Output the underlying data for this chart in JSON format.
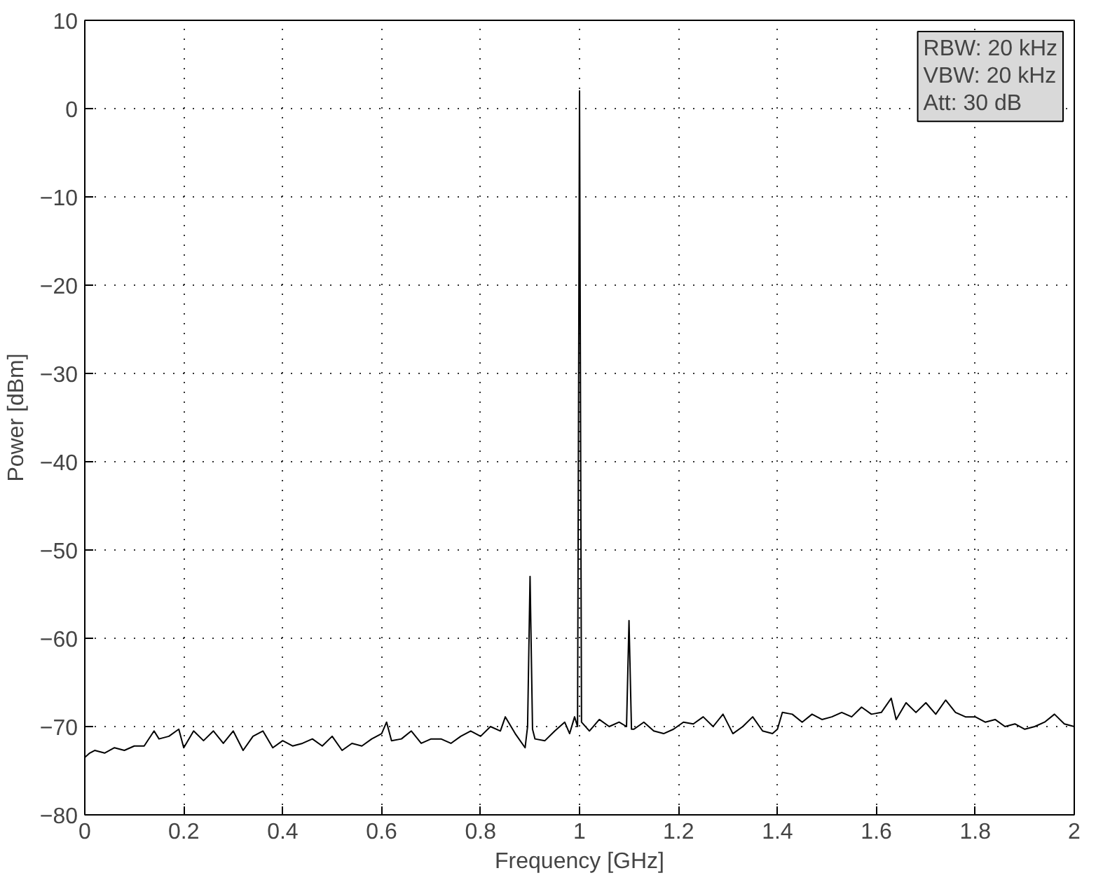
{
  "chart_data": {
    "type": "line",
    "xlabel": "Frequency [GHz]",
    "ylabel": "Power [dBm]",
    "annotations": [
      "RBW: 20 kHz",
      "VBW: 20 kHz",
      "Att: 30 dB"
    ],
    "xlim": [
      0,
      2
    ],
    "ylim": [
      -80,
      10
    ],
    "xticks": [
      0,
      0.2,
      0.4,
      0.6,
      0.8,
      1,
      1.2,
      1.4,
      1.6,
      1.8,
      2
    ],
    "yticks": [
      {
        "value": -80,
        "label": "−80"
      },
      {
        "value": -70,
        "label": "−70"
      },
      {
        "value": -60,
        "label": "−60"
      },
      {
        "value": -50,
        "label": "−50"
      },
      {
        "value": -40,
        "label": "−40"
      },
      {
        "value": -30,
        "label": "−30"
      },
      {
        "value": -20,
        "label": "−20"
      },
      {
        "value": -10,
        "label": "−10"
      },
      0,
      10
    ],
    "grid": true,
    "line_style": "solid",
    "marker": "none",
    "series": [
      {
        "color": "#000000",
        "x": [
          0,
          0.01,
          0.02,
          0.04,
          0.06,
          0.08,
          0.1,
          0.12,
          0.14,
          0.15,
          0.17,
          0.19,
          0.2,
          0.22,
          0.24,
          0.26,
          0.28,
          0.3,
          0.32,
          0.34,
          0.36,
          0.38,
          0.4,
          0.42,
          0.44,
          0.46,
          0.48,
          0.5,
          0.52,
          0.54,
          0.56,
          0.58,
          0.6,
          0.61,
          0.62,
          0.64,
          0.66,
          0.68,
          0.7,
          0.72,
          0.74,
          0.76,
          0.78,
          0.8,
          0.82,
          0.84,
          0.85,
          0.87,
          0.89,
          0.895,
          0.9,
          0.905,
          0.91,
          0.93,
          0.95,
          0.97,
          0.98,
          0.99,
          0.996,
          1,
          1.004,
          1.02,
          1.04,
          1.06,
          1.08,
          1.095,
          1.1,
          1.105,
          1.11,
          1.13,
          1.15,
          1.17,
          1.19,
          1.21,
          1.23,
          1.25,
          1.27,
          1.29,
          1.31,
          1.33,
          1.35,
          1.37,
          1.39,
          1.4,
          1.41,
          1.43,
          1.45,
          1.47,
          1.49,
          1.51,
          1.53,
          1.55,
          1.57,
          1.59,
          1.61,
          1.63,
          1.64,
          1.66,
          1.68,
          1.7,
          1.72,
          1.74,
          1.76,
          1.78,
          1.8,
          1.82,
          1.84,
          1.86,
          1.88,
          1.9,
          1.92,
          1.94,
          1.96,
          1.98,
          2
        ],
        "values": [
          -73.5,
          -73,
          -72.7,
          -73,
          -72.4,
          -72.7,
          -72.2,
          -72.2,
          -70.5,
          -71.4,
          -71.1,
          -70.3,
          -72.4,
          -70.5,
          -71.6,
          -70.5,
          -71.9,
          -70.5,
          -72.7,
          -71.1,
          -70.5,
          -72.4,
          -71.6,
          -72.2,
          -71.9,
          -71.4,
          -72.2,
          -71.1,
          -72.7,
          -71.9,
          -72.2,
          -71.4,
          -70.8,
          -69.5,
          -71.6,
          -71.4,
          -70.5,
          -71.9,
          -71.4,
          -71.4,
          -71.9,
          -71.1,
          -70.5,
          -71.1,
          -70,
          -70.5,
          -68.9,
          -70.8,
          -72.4,
          -70,
          -53,
          -70.3,
          -71.4,
          -71.6,
          -70.5,
          -69.5,
          -70.8,
          -68.9,
          -70,
          2,
          -69.5,
          -70.5,
          -69.2,
          -70,
          -69.5,
          -70,
          -58,
          -70.3,
          -70.3,
          -69.5,
          -70.5,
          -70.8,
          -70.3,
          -69.5,
          -69.7,
          -68.9,
          -70,
          -68.6,
          -70.8,
          -70,
          -68.9,
          -70.5,
          -70.8,
          -70.3,
          -68.4,
          -68.6,
          -69.5,
          -68.6,
          -69.2,
          -68.9,
          -68.4,
          -68.9,
          -67.8,
          -68.6,
          -68.4,
          -66.8,
          -69.2,
          -67.3,
          -68.4,
          -67.3,
          -68.6,
          -67,
          -68.4,
          -68.9,
          -68.9,
          -69.5,
          -69.2,
          -70,
          -69.7,
          -70.3,
          -70,
          -69.5,
          -68.6,
          -69.7,
          -70
        ]
      }
    ]
  }
}
